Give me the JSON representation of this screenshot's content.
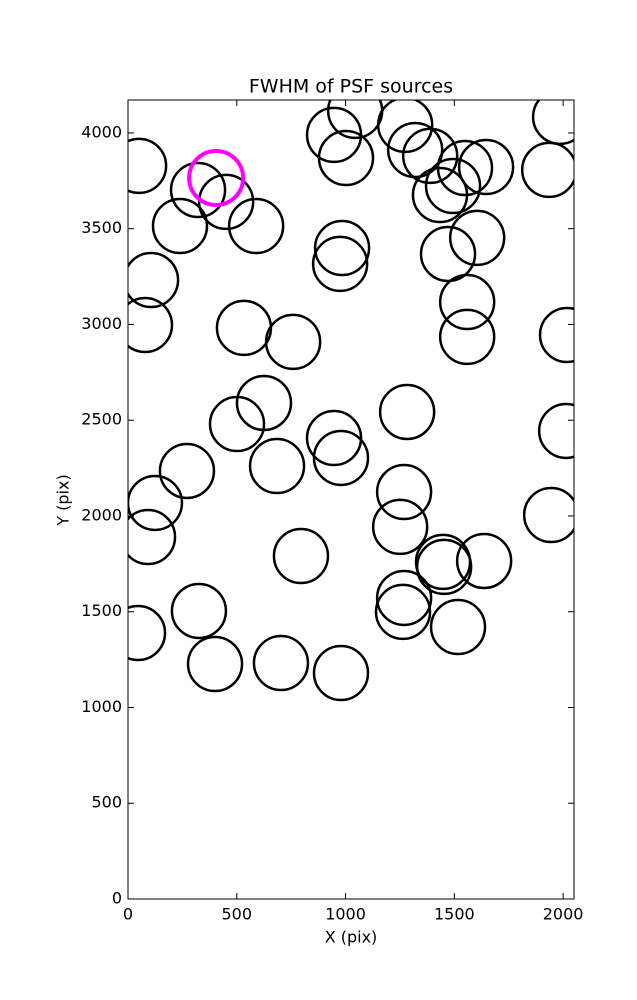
{
  "chart_data": {
    "type": "scatter",
    "title": "FWHM of PSF sources",
    "x_label": "X (pix)",
    "y_label": "Y (pix)",
    "xlim": [
      0,
      2050
    ],
    "ylim": [
      0,
      4172
    ],
    "xticks": [
      0,
      500,
      1000,
      1500,
      2000
    ],
    "yticks": [
      0,
      500,
      1000,
      1500,
      2000,
      2500,
      3000,
      3500,
      4000
    ],
    "grid": false,
    "series": [
      {
        "color": "#000000",
        "x": [
          51,
          322,
          451,
          239,
          589,
          106,
          78,
          533,
          759,
          625,
          501,
          685,
          271,
          124,
          92,
          795,
          326,
          46,
          400,
          703,
          979,
          947,
          1044,
          1002,
          984,
          975,
          947,
          979,
          1274,
          1320,
          1389,
          1434,
          1494,
          1549,
          1646,
          1605,
          1471,
          1559,
          1559,
          1283,
          1269,
          1251,
          1448,
          1453,
          1637,
          1269,
          1264,
          1517,
          1986,
          1936,
          2018,
          2014,
          1945
        ],
        "values": [
          3828,
          3702,
          3640,
          3514,
          3514,
          3232,
          2997,
          2982,
          2909,
          2590,
          2480,
          2261,
          2235,
          2068,
          1890,
          1791,
          1504,
          1389,
          1227,
          1232,
          1180,
          3990,
          4115,
          3869,
          3399,
          3316,
          2407,
          2303,
          4042,
          3911,
          3880,
          3676,
          3723,
          3817,
          3822,
          3452,
          3368,
          3117,
          2935,
          2543,
          2125,
          1943,
          1760,
          1734,
          1765,
          1572,
          1499,
          1420,
          4084,
          3807,
          2945,
          2444,
          2005
        ]
      },
      {
        "color": "#ff00ff",
        "x": [
          405
        ],
        "values": [
          3765
        ]
      }
    ]
  }
}
